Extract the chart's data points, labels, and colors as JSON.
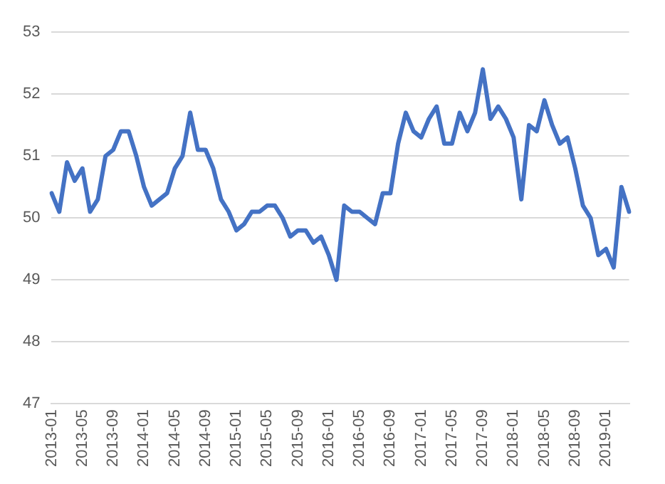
{
  "chart_data": {
    "type": "line",
    "categories": [
      "2013-01",
      null,
      null,
      null,
      "2013-05",
      null,
      null,
      null,
      "2013-09",
      null,
      null,
      null,
      "2014-01",
      null,
      null,
      null,
      "2014-05",
      null,
      null,
      null,
      "2014-09",
      null,
      null,
      null,
      "2015-01",
      null,
      null,
      null,
      "2015-05",
      null,
      null,
      null,
      "2015-09",
      null,
      null,
      null,
      "2016-01",
      null,
      null,
      null,
      "2016-05",
      null,
      null,
      null,
      "2016-09",
      null,
      null,
      null,
      "2017-01",
      null,
      null,
      null,
      "2017-05",
      null,
      null,
      null,
      "2017-09",
      null,
      null,
      null,
      "2018-01",
      null,
      null,
      null,
      "2018-05",
      null,
      null,
      null,
      "2018-09",
      null,
      null,
      null,
      "2019-01",
      null,
      null,
      null
    ],
    "series": [
      {
        "color": "#4472c4",
        "values": [
          50.4,
          50.1,
          50.9,
          50.6,
          50.8,
          50.1,
          50.3,
          51.0,
          51.1,
          51.4,
          51.4,
          51.0,
          50.5,
          50.2,
          50.3,
          50.4,
          50.8,
          51.0,
          51.7,
          51.1,
          51.1,
          50.8,
          50.3,
          50.1,
          49.8,
          49.9,
          50.1,
          50.1,
          50.2,
          50.2,
          50.0,
          49.7,
          49.8,
          49.8,
          49.6,
          49.7,
          49.4,
          49.0,
          50.2,
          50.1,
          50.1,
          50.0,
          49.9,
          50.4,
          50.4,
          51.2,
          51.7,
          51.4,
          51.3,
          51.6,
          51.8,
          51.2,
          51.2,
          51.7,
          51.4,
          51.7,
          52.4,
          51.6,
          51.8,
          51.6,
          51.3,
          50.3,
          51.5,
          51.4,
          51.9,
          51.5,
          51.2,
          51.3,
          50.8,
          50.2,
          50.0,
          49.4,
          49.5,
          49.2,
          50.5,
          50.1
        ]
      }
    ],
    "ylim": [
      47,
      53
    ],
    "yticks": [
      47,
      48,
      49,
      50,
      51,
      52,
      53
    ],
    "grid": "y",
    "legend": false,
    "marker": "none",
    "line_style": "solid"
  }
}
